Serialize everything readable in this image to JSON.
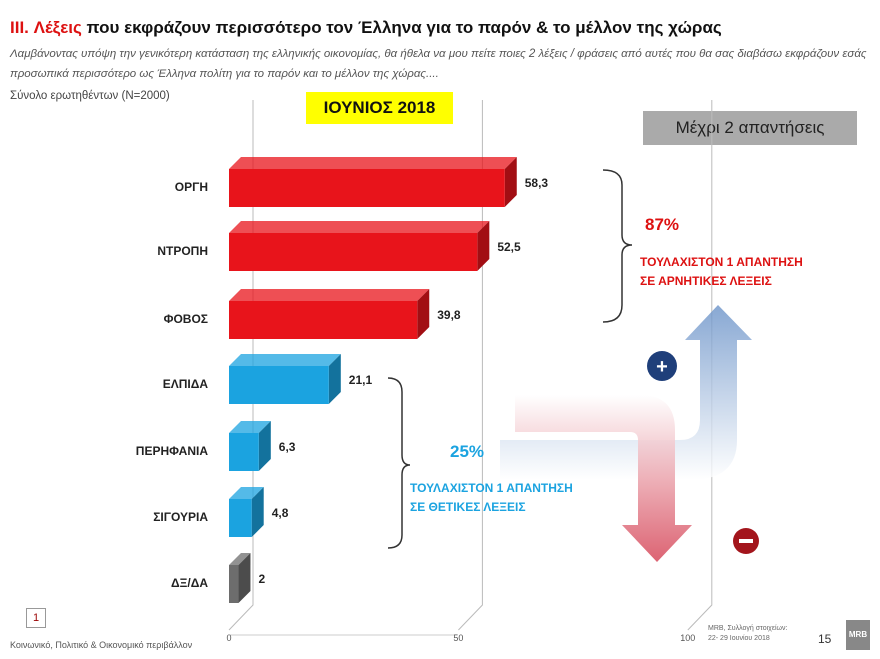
{
  "header": {
    "title_prefix": "III. Λέξεις",
    "title_rest": " που εκφράζουν περισσότερο τον Έλληνα για το παρόν & το μέλλον της χώρας",
    "question": "Λαμβάνοντας υπόψη την γενικότερη κατάσταση της ελληνικής οικονομίας, θα ήθελα να μου πείτε ποιες 2 λέξεις / φράσεις από αυτές που θα σας διαβάσω εκφράζουν εσάς προσωπικά περισσότερο ως Έλληνα πολίτη για το παρόν και το μέλλον της χώρας....",
    "base": "Σύνολο ερωτηθέντων (N=2000)",
    "period": "ΙΟΥΝΙΟΣ 2018",
    "max_answers": "Μέχρι 2 απαντήσεις"
  },
  "chart_data": {
    "type": "bar",
    "orientation": "horizontal",
    "categories": [
      "ΟΡΓΗ",
      "ΝΤΡΟΠΗ",
      "ΦΟΒΟΣ",
      "ΕΛΠΙΔΑ",
      "ΠΕΡΗΦΑΝΙΑ",
      "ΣΙΓΟΥΡΙΑ",
      "ΔΞ/ΔΑ"
    ],
    "values": [
      58.3,
      52.5,
      39.8,
      21.1,
      6.3,
      4.8,
      2
    ],
    "labels": [
      "58,3",
      "52,5",
      "39,8",
      "21,1",
      "6,3",
      "4,8",
      "2"
    ],
    "colors": [
      "#e8141b",
      "#e8141b",
      "#e8141b",
      "#1ba3e0",
      "#1ba3e0",
      "#1ba3e0",
      "#6d6d6d"
    ],
    "xlim": [
      0,
      100
    ],
    "xticks": [
      "0",
      "50",
      "100"
    ]
  },
  "groups": {
    "negative": {
      "pct": "87%",
      "text1": "ΤΟΥΛΑΧΙΣΤΟΝ 1 ΑΠΑΝΤΗΣΗ",
      "text2": "ΣΕ ΑΡΝΗΤΙΚΕΣ ΛΕΞΕΙΣ",
      "color": "#d11"
    },
    "positive": {
      "pct": "25%",
      "text1": "ΤΟΥΛΑΧΙΣΤΟΝ 1 ΑΠΑΝΤΗΣΗ",
      "text2": "ΣΕ ΘΕΤΙΚΕΣ ΛΕΞΕΙΣ",
      "color": "#1ba3e0"
    }
  },
  "footer": {
    "slide_no": "1",
    "section": "Κοινωνικό, Πολιτικό & Οικονομικό περιβάλλον",
    "source1": "MRB, Συλλογή στοιχείων:",
    "source2": "22- 29 Ιουνίου 2018",
    "page": "15",
    "logo": "MRB"
  }
}
